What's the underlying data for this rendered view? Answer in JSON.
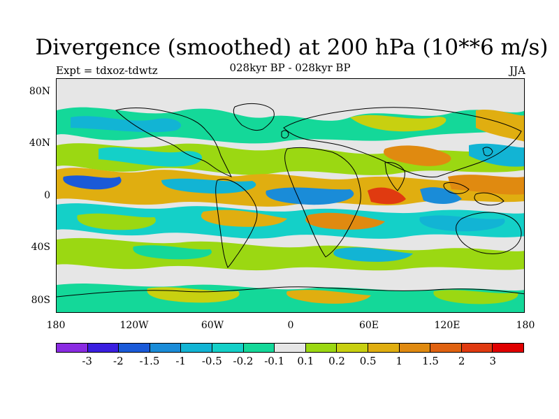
{
  "header": {
    "title": "Divergence (smoothed) at 200 hPa (10**6 m/s)",
    "expt": "Expt = tdxoz-tdwtz",
    "subtitle": "028kyr BP - 028kyr BP",
    "season": "JJA"
  },
  "axes": {
    "lat_labels": [
      "80N",
      "40N",
      "0",
      "40S",
      "80S"
    ],
    "lon_labels": [
      "180",
      "120W",
      "60W",
      "0",
      "60E",
      "120E",
      "180"
    ]
  },
  "colorbar": {
    "colors": [
      "#8a2be2",
      "#3a1ee0",
      "#1a5ad8",
      "#1a8cd8",
      "#12b4d4",
      "#14d0c8",
      "#14d899",
      "#e6e6e6",
      "#9bd812",
      "#c8d010",
      "#e0ae10",
      "#e08a10",
      "#e06210",
      "#e03a10",
      "#e00000"
    ],
    "labels": [
      "-3",
      "-2",
      "-1.5",
      "-1",
      "-0.5",
      "-0.2",
      "-0.1",
      "0.1",
      "0.2",
      "0.5",
      "1",
      "1.5",
      "2",
      "3"
    ]
  }
}
